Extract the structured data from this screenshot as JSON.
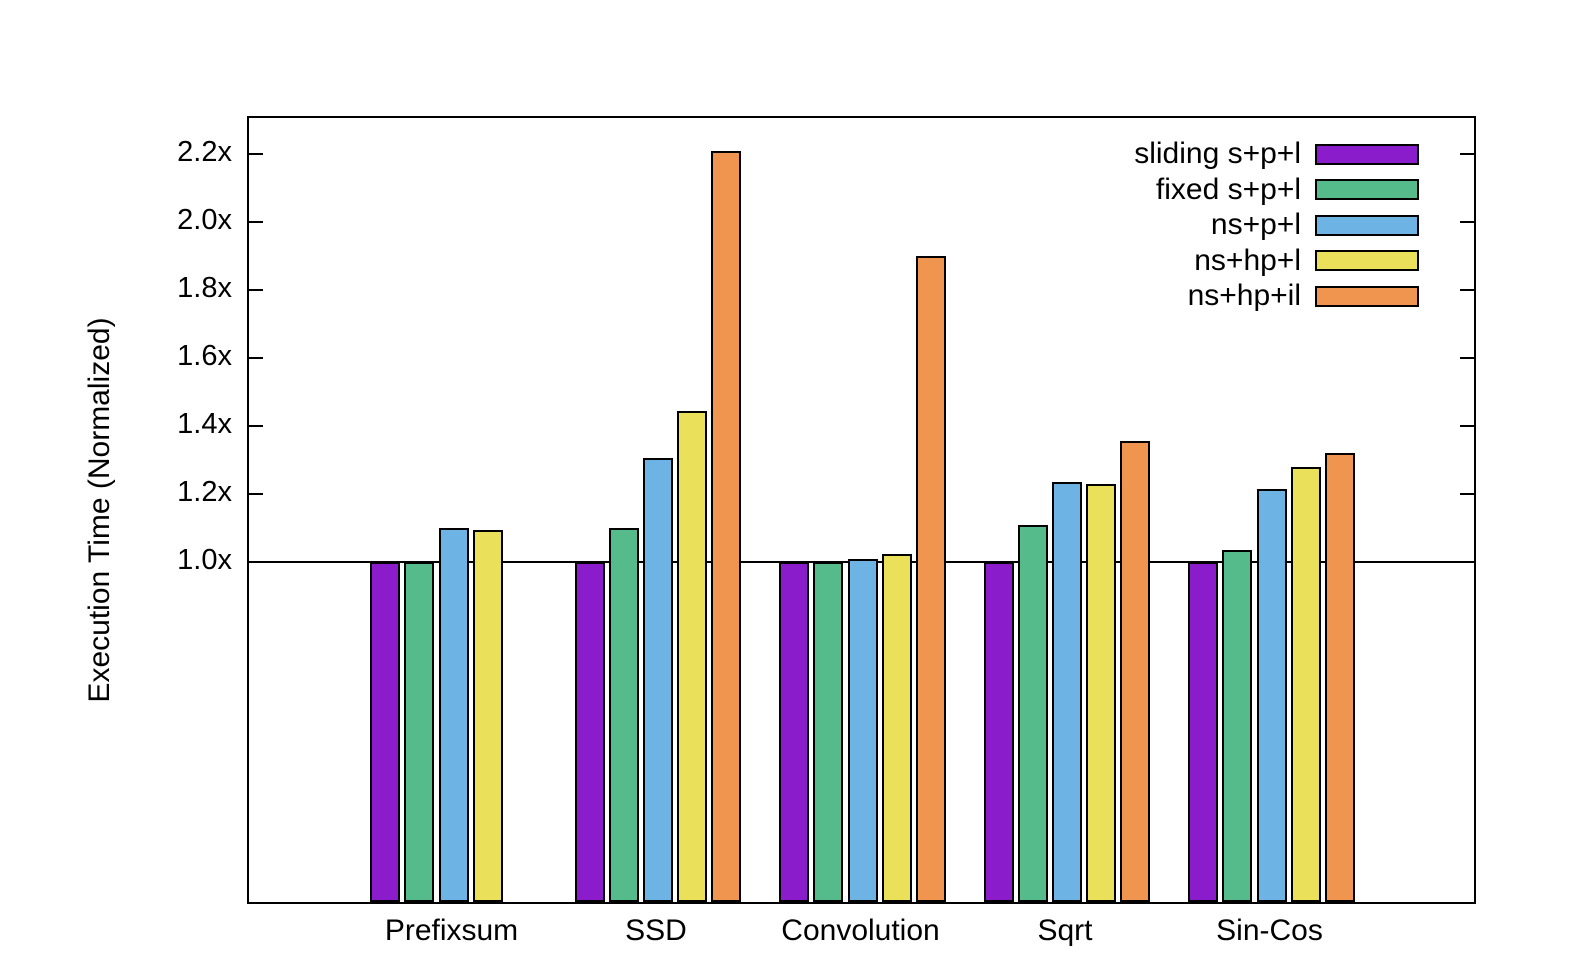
{
  "chart_data": {
    "type": "bar",
    "title": "",
    "xlabel": "",
    "ylabel": "Execution Time (Normalized)",
    "categories": [
      "Prefixsum",
      "SSD",
      "Convolution",
      "Sqrt",
      "Sin-Cos"
    ],
    "series": [
      {
        "name": "sliding s+p+l",
        "color": "#8A1CCB",
        "values": [
          1.0,
          1.0,
          1.0,
          1.0,
          1.0
        ]
      },
      {
        "name": "fixed s+p+l",
        "color": "#55BB8A",
        "values": [
          1.0,
          1.1,
          1.0,
          1.11,
          1.035
        ]
      },
      {
        "name": "ns+p+l",
        "color": "#6DB3E3",
        "values": [
          1.1,
          1.305,
          1.01,
          1.235,
          1.215
        ]
      },
      {
        "name": "ns+hp+l",
        "color": "#EBE05A",
        "values": [
          1.095,
          1.445,
          1.025,
          1.23,
          1.28
        ]
      },
      {
        "name": "ns+hp+il",
        "color": "#F0954F",
        "values": [
          null,
          2.21,
          1.9,
          1.355,
          1.32
        ]
      }
    ],
    "y_ticks": [
      {
        "value": 1.0,
        "label": "1.0x"
      },
      {
        "value": 1.2,
        "label": "1.2x"
      },
      {
        "value": 1.4,
        "label": "1.4x"
      },
      {
        "value": 1.6,
        "label": "1.6x"
      },
      {
        "value": 1.8,
        "label": "1.8x"
      },
      {
        "value": 2.0,
        "label": "2.0x"
      },
      {
        "value": 2.2,
        "label": "2.2x"
      }
    ],
    "ylim": [
      0,
      2.306
    ],
    "reference_line": 1.0,
    "legend_position": "top-right",
    "grid": false,
    "axis_color": "#000000",
    "background_color": "#ffffff"
  }
}
